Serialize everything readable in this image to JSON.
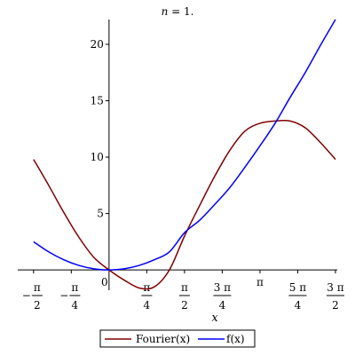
{
  "chart_data": {
    "type": "line",
    "title": "n = 1.",
    "title_var": "n",
    "title_rest": " = 1.",
    "xlabel": "x",
    "ylabel": "",
    "xlim": [
      -1.9,
      4.75
    ],
    "ylim": [
      -1.8,
      22.2
    ],
    "grid": false,
    "legend_position": "bottom-center",
    "y_ticks": [
      {
        "value": 5,
        "label": "5"
      },
      {
        "value": 10,
        "label": "10"
      },
      {
        "value": 15,
        "label": "15"
      },
      {
        "value": 20,
        "label": "20"
      }
    ],
    "x_ticks": [
      {
        "value": -1.5708,
        "num": "π",
        "den": "2",
        "sign": "−"
      },
      {
        "value": -0.7854,
        "num": "π",
        "den": "4",
        "sign": "−"
      },
      {
        "value": 0,
        "single": "0"
      },
      {
        "value": 0.7854,
        "num": "π",
        "den": "4"
      },
      {
        "value": 1.5708,
        "num": "π",
        "den": "2"
      },
      {
        "value": 2.3562,
        "num": "3 π",
        "den": "4"
      },
      {
        "value": 3.1416,
        "single": "π"
      },
      {
        "value": 3.927,
        "num": "5 π",
        "den": "4"
      },
      {
        "value": 4.7124,
        "num": "3 π",
        "den": "2"
      }
    ],
    "series": [
      {
        "name": "Fourier(x)",
        "color": "#800000",
        "x": [
          -1.5708,
          -1.2566,
          -0.9425,
          -0.6283,
          -0.3142,
          0,
          0.3142,
          0.6283,
          0.9425,
          1.2566,
          1.5708,
          1.885,
          2.1991,
          2.5133,
          2.8274,
          3.1416,
          3.4558,
          3.7699,
          4.0841,
          4.3982,
          4.7124
        ],
        "y": [
          9.8,
          7.5,
          5.1,
          2.9,
          1.1,
          0,
          -0.9,
          -1.6,
          -1.5,
          0,
          3,
          5.7,
          8.3,
          10.6,
          12.3,
          13,
          13.2,
          13.2,
          12.6,
          11.3,
          9.8
        ]
      },
      {
        "name": "f(x)",
        "color": "#0000ff",
        "x": [
          -1.5708,
          -1.2566,
          -0.9425,
          -0.6283,
          -0.3142,
          0,
          0.3142,
          0.6283,
          0.9425,
          1.2566,
          1.5708,
          1.885,
          2.1991,
          2.5133,
          2.8274,
          3.1416,
          3.4558,
          3.7699,
          4.0841,
          4.3982,
          4.7124
        ],
        "y": [
          2.5,
          1.6,
          0.9,
          0.4,
          0.1,
          0,
          0.1,
          0.4,
          0.9,
          1.6,
          3.3,
          4.4,
          5.8,
          7.3,
          9.1,
          11,
          13,
          15.3,
          17.5,
          19.9,
          22.2
        ]
      }
    ]
  }
}
